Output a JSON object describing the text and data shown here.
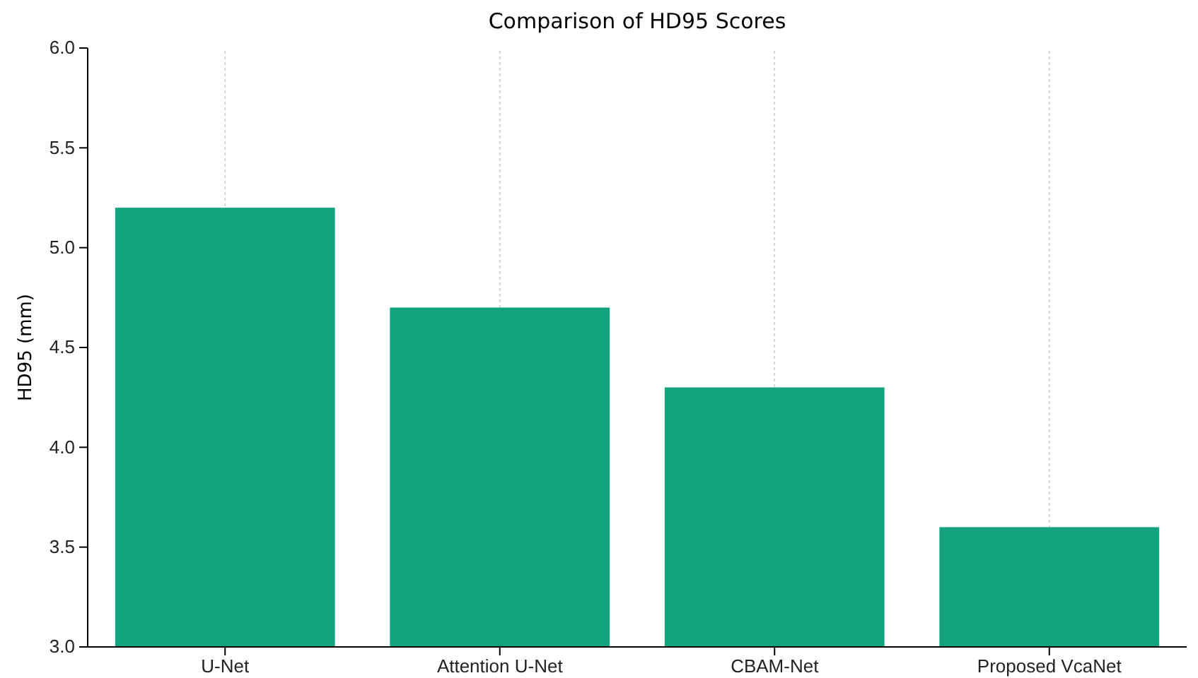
{
  "chart_data": {
    "type": "bar",
    "title": "Comparison of HD95 Scores",
    "ylabel": "HD95 (mm)",
    "categories": [
      "U-Net",
      "Attention U-Net",
      "CBAM-Net",
      "Proposed VcaNet"
    ],
    "values": [
      5.2,
      4.7,
      4.3,
      3.6
    ],
    "color": "#13a37f",
    "ylim": [
      3,
      6
    ],
    "yticks": [
      {
        "value": 3,
        "label": "3.0"
      },
      {
        "value": 3.5,
        "label": "3.5"
      },
      {
        "value": 4,
        "label": "4.0"
      },
      {
        "value": 4.5,
        "label": "4.5"
      },
      {
        "value": 5,
        "label": "5.0"
      },
      {
        "value": 5.5,
        "label": "5.5"
      },
      {
        "value": 6,
        "label": "6.0"
      }
    ],
    "grid": "x"
  }
}
